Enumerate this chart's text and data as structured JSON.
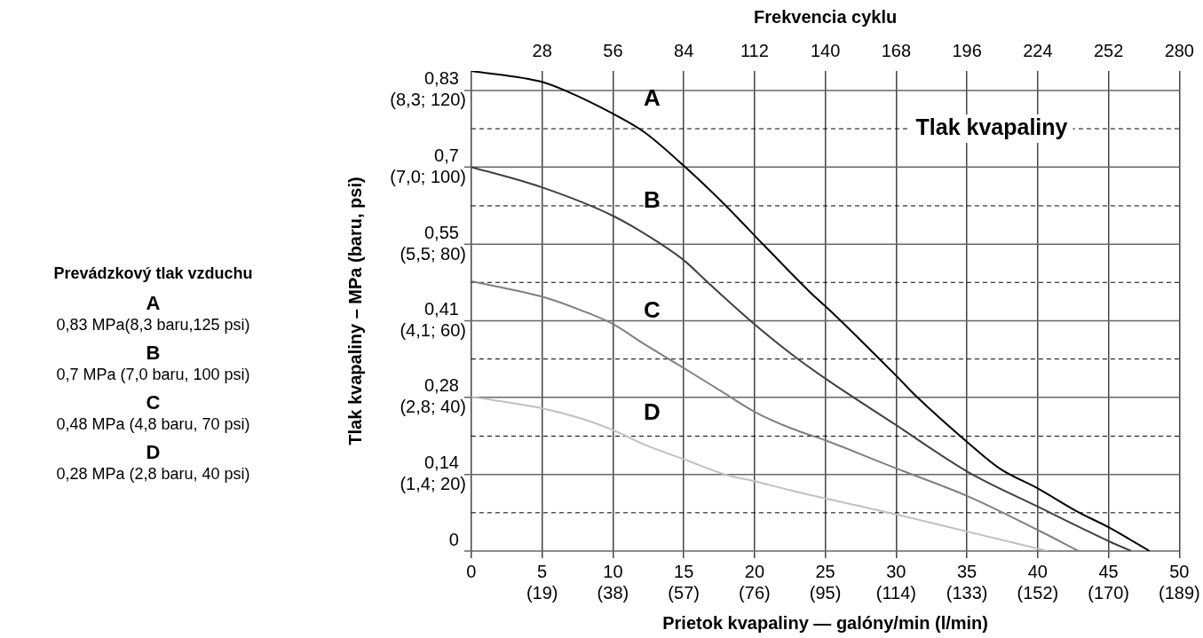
{
  "chart_data": {
    "type": "line",
    "title": "Tlak kvapaliny",
    "xlabel": "Prietok kvapaliny — galóny/min (l/min)",
    "ylabel": "Tlak kvapaliny – MPa (baru, psi)",
    "x2label": "Frekvencia cyklu",
    "legend_title": "Prevádzkový tlak vzduchu",
    "annotations": [
      "(19)",
      "(38)",
      "(57)",
      "(76)",
      "(95)",
      "(114)",
      "(133)",
      "(152)",
      "(170)",
      "(189)",
      "(1,4; 20)",
      "(2,8; 40)",
      "(4,1; 60)",
      "(5,5; 80)",
      "(7,0; 100)",
      "(8,3; 120)",
      "A",
      "0,83 MPa(8,3 baru,125 psi)",
      "B",
      "0,7 MPa (7,0 baru, 100 psi)",
      "C",
      "0,48 MPa (4,8 baru, 70 psi)",
      "D",
      "0,28 MPa (2,8 baru, 40 psi)"
    ],
    "xlim": [
      0,
      50
    ],
    "xticks": [
      0,
      5,
      10,
      15,
      20,
      25,
      30,
      35,
      40,
      45,
      50
    ],
    "x2lim": [
      0,
      280
    ],
    "x2ticks": [
      28,
      56,
      84,
      112,
      140,
      168,
      196,
      224,
      252,
      280
    ],
    "ylim": [
      0,
      0.865
    ],
    "yticks": [
      0,
      {
        "value": 0.069,
        "label": null
      },
      {
        "value": 0.138,
        "label": "0,14"
      },
      {
        "value": 0.207,
        "label": null
      },
      {
        "value": 0.277,
        "label": "0,28"
      },
      {
        "value": 0.346,
        "label": null
      },
      {
        "value": 0.415,
        "label": "0,41"
      },
      {
        "value": 0.484,
        "label": null
      },
      {
        "value": 0.553,
        "label": "0,55"
      },
      {
        "value": 0.622,
        "label": null
      },
      {
        "value": 0.692,
        "label": "0,7"
      },
      {
        "value": 0.761,
        "label": null
      },
      {
        "value": 0.83,
        "label": "0,83"
      }
    ],
    "grid": true,
    "series": [
      {
        "name": "A",
        "color": "#000000",
        "x": [
          0,
          5.03,
          6.6,
          10,
          12.2,
          15.05,
          17.9,
          20.55,
          23.9,
          25.6,
          30,
          31.5,
          35.04,
          37.3,
          40,
          42.8,
          45,
          47.9
        ],
        "values": [
          0.865,
          0.845,
          0.83,
          0.788,
          0.755,
          0.693,
          0.624,
          0.554,
          0.467,
          0.427,
          0.316,
          0.277,
          0.196,
          0.149,
          0.113,
          0.071,
          0.043,
          0
        ]
      },
      {
        "name": "B",
        "color": "#404040",
        "x": [
          0,
          5.03,
          10,
          13.4,
          15.05,
          16.7,
          19.8,
          22.6,
          25.05,
          30,
          35.04,
          40,
          45,
          46.6
        ],
        "values": [
          0.692,
          0.655,
          0.604,
          0.553,
          0.523,
          0.484,
          0.413,
          0.355,
          0.31,
          0.227,
          0.143,
          0.08,
          0.018,
          0
        ]
      },
      {
        "name": "C",
        "color": "#7f7f7f",
        "x": [
          0,
          5.03,
          7.73,
          10,
          12.2,
          15.05,
          17.9,
          20,
          22.6,
          25.05,
          30,
          35.04,
          40,
          42.9
        ],
        "values": [
          0.486,
          0.458,
          0.434,
          0.409,
          0.373,
          0.329,
          0.284,
          0.251,
          0.221,
          0.199,
          0.149,
          0.099,
          0.038,
          0
        ]
      },
      {
        "name": "D",
        "color": "#c0c0c0",
        "x": [
          0,
          5.03,
          7.73,
          10,
          12.2,
          15.05,
          17.9,
          20,
          22.6,
          30,
          35.04,
          40.7
        ],
        "values": [
          0.278,
          0.257,
          0.239,
          0.218,
          0.192,
          0.165,
          0.138,
          0.126,
          0.109,
          0.066,
          0.035,
          0
        ]
      }
    ]
  }
}
